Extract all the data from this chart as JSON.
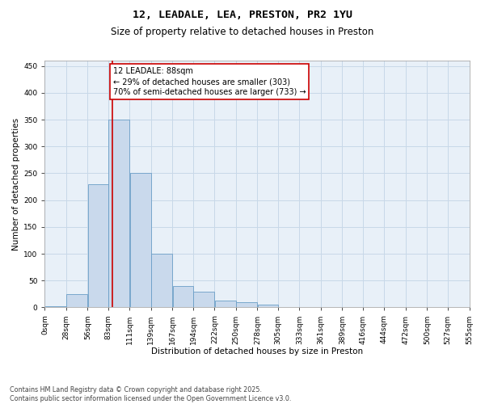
{
  "title": "12, LEADALE, LEA, PRESTON, PR2 1YU",
  "subtitle": "Size of property relative to detached houses in Preston",
  "xlabel": "Distribution of detached houses by size in Preston",
  "ylabel": "Number of detached properties",
  "bar_color": "#c9d9ec",
  "bar_edge_color": "#6a9ec7",
  "grid_color": "#c8d8e8",
  "background_color": "#e8f0f8",
  "vline_x": 88,
  "vline_color": "#cc0000",
  "annotation_text": "12 LEADALE: 88sqm\n← 29% of detached houses are smaller (303)\n70% of semi-detached houses are larger (733) →",
  "annotation_box_color": "#cc0000",
  "bins": [
    0,
    28,
    56,
    83,
    111,
    139,
    167,
    194,
    222,
    250,
    278,
    305,
    333,
    361,
    389,
    416,
    444,
    472,
    500,
    527,
    555
  ],
  "bin_labels": [
    "0sqm",
    "28sqm",
    "56sqm",
    "83sqm",
    "111sqm",
    "139sqm",
    "167sqm",
    "194sqm",
    "222sqm",
    "250sqm",
    "278sqm",
    "305sqm",
    "333sqm",
    "361sqm",
    "389sqm",
    "416sqm",
    "444sqm",
    "472sqm",
    "500sqm",
    "527sqm",
    "555sqm"
  ],
  "values": [
    2,
    25,
    230,
    350,
    250,
    100,
    40,
    30,
    12,
    10,
    5,
    1,
    0,
    0,
    0,
    0,
    1,
    0,
    0,
    1
  ],
  "ylim": [
    0,
    460
  ],
  "yticks": [
    0,
    50,
    100,
    150,
    200,
    250,
    300,
    350,
    400,
    450
  ],
  "footer": "Contains HM Land Registry data © Crown copyright and database right 2025.\nContains public sector information licensed under the Open Government Licence v3.0.",
  "title_fontsize": 9.5,
  "subtitle_fontsize": 8.5,
  "annotation_fontsize": 7,
  "axis_label_fontsize": 7.5,
  "tick_fontsize": 6.5,
  "footer_fontsize": 5.8
}
